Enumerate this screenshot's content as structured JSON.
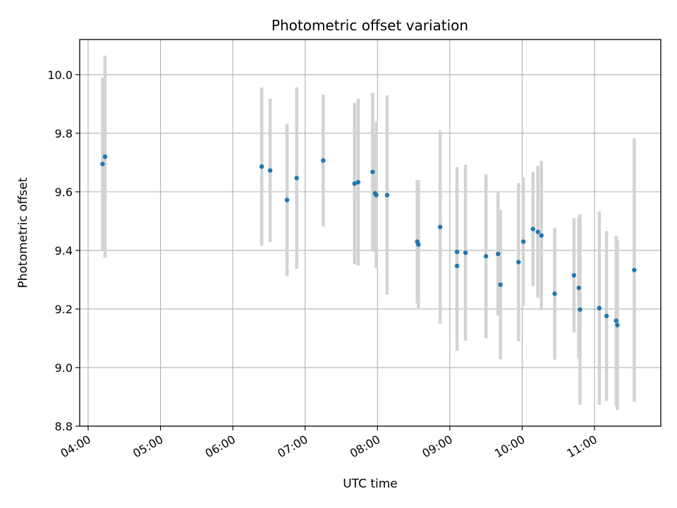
{
  "chart_data": {
    "type": "scatter",
    "title": "Photometric offset variation",
    "xlabel": "UTC time",
    "ylabel": "Photometric offset",
    "xlim": [
      "03:53",
      "11:55"
    ],
    "ylim": [
      8.8,
      10.12
    ],
    "x_ticks": [
      "04:00",
      "05:00",
      "06:00",
      "07:00",
      "08:00",
      "09:00",
      "10:00",
      "11:00"
    ],
    "y_ticks": [
      8.8,
      9.0,
      9.2,
      9.4,
      9.6,
      9.8,
      10.0
    ],
    "grid": true,
    "colors": {
      "points": "#1f77b4",
      "error_bars": "#d3d3d3",
      "grid": "#b0b0b0"
    },
    "points": [
      {
        "x": "04:12",
        "y": 9.695,
        "yerr": 0.295
      },
      {
        "x": "04:14",
        "y": 9.72,
        "yerr": 0.345
      },
      {
        "x": "06:24",
        "y": 9.686,
        "yerr": 0.27
      },
      {
        "x": "06:31",
        "y": 9.673,
        "yerr": 0.245
      },
      {
        "x": "06:45",
        "y": 9.572,
        "yerr": 0.26
      },
      {
        "x": "06:53",
        "y": 9.647,
        "yerr": 0.31
      },
      {
        "x": "07:15",
        "y": 9.707,
        "yerr": 0.225
      },
      {
        "x": "07:41",
        "y": 9.628,
        "yerr": 0.275
      },
      {
        "x": "07:44",
        "y": 9.633,
        "yerr": 0.285
      },
      {
        "x": "07:56",
        "y": 9.668,
        "yerr": 0.27
      },
      {
        "x": "07:58",
        "y": 9.595,
        "yerr": 0.2
      },
      {
        "x": "07:59",
        "y": 9.589,
        "yerr": 0.25
      },
      {
        "x": "08:08",
        "y": 9.589,
        "yerr": 0.34
      },
      {
        "x": "08:33",
        "y": 9.43,
        "yerr": 0.21
      },
      {
        "x": "08:34",
        "y": 9.42,
        "yerr": 0.22
      },
      {
        "x": "08:52",
        "y": 9.48,
        "yerr": 0.33
      },
      {
        "x": "09:06",
        "y": 9.395,
        "yerr": 0.29
      },
      {
        "x": "09:06",
        "y": 9.347,
        "yerr": 0.29
      },
      {
        "x": "09:13",
        "y": 9.392,
        "yerr": 0.3
      },
      {
        "x": "09:30",
        "y": 9.38,
        "yerr": 0.28
      },
      {
        "x": "09:40",
        "y": 9.388,
        "yerr": 0.21
      },
      {
        "x": "09:42",
        "y": 9.283,
        "yerr": 0.255
      },
      {
        "x": "09:57",
        "y": 9.36,
        "yerr": 0.27
      },
      {
        "x": "10:01",
        "y": 9.43,
        "yerr": 0.22
      },
      {
        "x": "10:09",
        "y": 9.473,
        "yerr": 0.195
      },
      {
        "x": "10:13",
        "y": 9.463,
        "yerr": 0.225
      },
      {
        "x": "10:16",
        "y": 9.451,
        "yerr": 0.255
      },
      {
        "x": "10:27",
        "y": 9.252,
        "yerr": 0.225
      },
      {
        "x": "10:43",
        "y": 9.315,
        "yerr": 0.195
      },
      {
        "x": "10:47",
        "y": 9.272,
        "yerr": 0.24
      },
      {
        "x": "10:48",
        "y": 9.198,
        "yerr": 0.325
      },
      {
        "x": "11:04",
        "y": 9.203,
        "yerr": 0.33
      },
      {
        "x": "11:10",
        "y": 9.176,
        "yerr": 0.29
      },
      {
        "x": "11:18",
        "y": 9.16,
        "yerr": 0.29
      },
      {
        "x": "11:19",
        "y": 9.145,
        "yerr": 0.29
      },
      {
        "x": "11:33",
        "y": 9.333,
        "yerr": 0.45
      }
    ]
  }
}
